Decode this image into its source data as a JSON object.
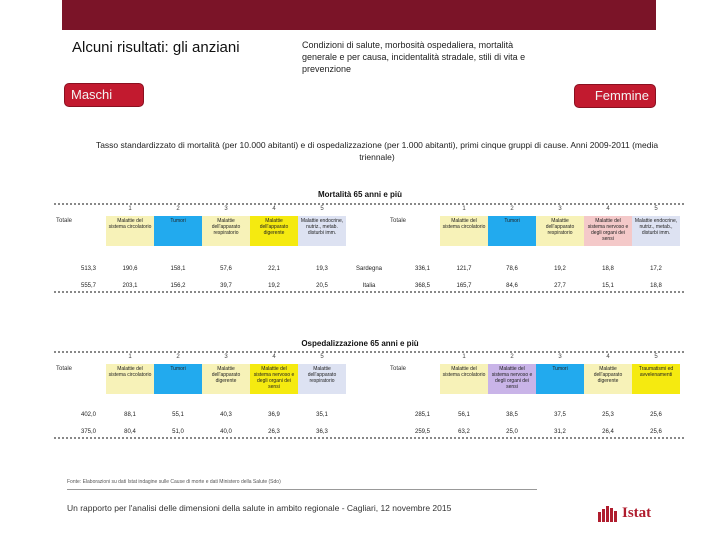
{
  "header": {
    "title": "Alcuni risultati: gli anziani",
    "topic": "Condizioni di salute, morbosità ospedaliera, mortalità generale e per causa, incidentalità stradale, stili di vita e prevenzione",
    "tag_left": "Maschi",
    "tag_right": "Femmine",
    "accent_color": "#7b1428",
    "tag_color": "#c21a2f"
  },
  "note": "Tasso standardizzato di mortalità (per 10.000 abitanti) e di ospedalizzazione (per 1.000 abitanti), primi cinque gruppi di cause. Anni 2009-2011 (media triennale)",
  "tables": [
    {
      "title": "Mortalità 65 anni e più",
      "total_label": "Totale",
      "row_labels": [
        "Sardegna",
        "Italia"
      ],
      "left": {
        "ranks": [
          "1",
          "2",
          "3",
          "4",
          "5"
        ],
        "causes": [
          {
            "label": "Malattie del sistema circolatorio",
            "color": "#f7f2b8"
          },
          {
            "label": "Tumori",
            "color": "#22aaee"
          },
          {
            "label": "Malattie dell'apparato respiratorio",
            "color": "#f7f2b8"
          },
          {
            "label": "Malattie dell'apparato digerente",
            "color": "#f5ea10"
          },
          {
            "label": "Malattie endocrine, nutriz., metab. disturbi imm.",
            "color": "#dde2f2"
          }
        ],
        "totals": [
          "513,3",
          "555,7"
        ],
        "values": [
          [
            "190,6",
            "158,1",
            "57,6",
            "22,1",
            "19,3"
          ],
          [
            "203,1",
            "156,2",
            "39,7",
            "19,2",
            "20,5"
          ]
        ]
      },
      "right": {
        "ranks": [
          "1",
          "2",
          "3",
          "4",
          "5"
        ],
        "causes": [
          {
            "label": "Malattie del sistema circolatorio",
            "color": "#f7f2b8"
          },
          {
            "label": "Tumori",
            "color": "#22aaee"
          },
          {
            "label": "Malattie dell'apparato respiratorio",
            "color": "#f7f2b8"
          },
          {
            "label": "Malattie del sistema nervoso e degli organi dei sensi",
            "color": "#f4c9c9"
          },
          {
            "label": "Malattie endocrine, nutriz., metab., disturbi imm.",
            "color": "#dde2f2"
          }
        ],
        "totals": [
          "336,1",
          "368,5"
        ],
        "values": [
          [
            "121,7",
            "78,6",
            "19,2",
            "18,8",
            "17,2"
          ],
          [
            "165,7",
            "84,6",
            "27,7",
            "15,1",
            "18,8"
          ]
        ]
      }
    },
    {
      "title": "Ospedalizzazione 65 anni e più",
      "total_label": "Totale",
      "row_labels": [
        "",
        ""
      ],
      "left": {
        "ranks": [
          "1",
          "2",
          "3",
          "4",
          "5"
        ],
        "causes": [
          {
            "label": "Malattie del sistema circolatorio",
            "color": "#f7f2b8"
          },
          {
            "label": "Tumori",
            "color": "#22aaee"
          },
          {
            "label": "Malattie dell'apparato digerente",
            "color": "#f7f2b8"
          },
          {
            "label": "Malattie del sistema nervoso e degli organi dei sensi",
            "color": "#f5ea10"
          },
          {
            "label": "Malattie dell'apparato respiratorio",
            "color": "#dde2f2"
          }
        ],
        "totals": [
          "402,0",
          "375,0"
        ],
        "values": [
          [
            "88,1",
            "55,1",
            "40,3",
            "36,9",
            "35,1"
          ],
          [
            "80,4",
            "51,0",
            "40,0",
            "26,3",
            "36,3"
          ]
        ]
      },
      "right": {
        "ranks": [
          "1",
          "2",
          "3",
          "4",
          "5"
        ],
        "causes": [
          {
            "label": "Malattie del sistema circolatorio",
            "color": "#f7f2b8"
          },
          {
            "label": "Malattie del sistema nervoso e degli organi dei sensi",
            "color": "#c9b4e8"
          },
          {
            "label": "Tumori",
            "color": "#22aaee"
          },
          {
            "label": "Malattie dell'apparato digerente",
            "color": "#f7f2b8"
          },
          {
            "label": "Traumatismi ed avvelenamenti",
            "color": "#f5ea10"
          }
        ],
        "totals": [
          "285,1",
          "259,5"
        ],
        "values": [
          [
            "56,1",
            "38,5",
            "37,5",
            "25,3",
            "25,6"
          ],
          [
            "63,2",
            "25,0",
            "31,2",
            "26,4",
            "25,6"
          ]
        ]
      }
    }
  ],
  "source": "Fonte: Elaborazioni su dati Istat indagine sulle Cause di morte e dati Ministero della Salute (Sdo)",
  "footer": "Un rapporto per l'analisi delle dimensioni della salute in ambito regionale - Cagliari, 12 novembre 2015",
  "logo": {
    "text": "Istat",
    "color": "#b01d2e"
  }
}
